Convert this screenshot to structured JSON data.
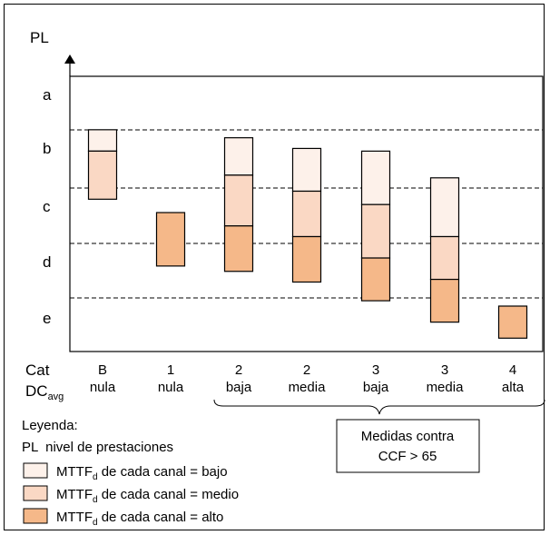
{
  "diagram": {
    "y_axis_label": "PL",
    "pl_levels": [
      "a",
      "b",
      "c",
      "d",
      "e"
    ],
    "cat_label": "Cat",
    "dc_label": "DC",
    "dc_subscript": "avg",
    "categories": [
      {
        "cat": "B",
        "dc": "nula"
      },
      {
        "cat": "1",
        "dc": "nula"
      },
      {
        "cat": "2",
        "dc": "baja"
      },
      {
        "cat": "2",
        "dc": "media"
      },
      {
        "cat": "3",
        "dc": "baja"
      },
      {
        "cat": "3",
        "dc": "media"
      },
      {
        "cat": "4",
        "dc": "alta"
      }
    ],
    "mttf_colors": {
      "bajo": "#fdf1ea",
      "medio": "#fad8c4",
      "alto": "#f5b889"
    },
    "bars": [
      {
        "category": "B nula",
        "mttf": "bajo",
        "from": 0.7,
        "to": 1.1
      },
      {
        "category": "B nula",
        "mttf": "medio",
        "from": 1.1,
        "to": 2.0
      },
      {
        "category": "1 nula",
        "mttf": "alto",
        "from": 2.25,
        "to": 3.25
      },
      {
        "category": "2 baja",
        "mttf": "bajo",
        "from": 0.85,
        "to": 1.55
      },
      {
        "category": "2 baja",
        "mttf": "medio",
        "from": 1.55,
        "to": 2.5
      },
      {
        "category": "2 baja",
        "mttf": "alto",
        "from": 2.5,
        "to": 3.35
      },
      {
        "category": "2 media",
        "mttf": "bajo",
        "from": 1.05,
        "to": 1.85
      },
      {
        "category": "2 media",
        "mttf": "medio",
        "from": 1.85,
        "to": 2.7
      },
      {
        "category": "2 media",
        "mttf": "alto",
        "from": 2.7,
        "to": 3.55
      },
      {
        "category": "3 baja",
        "mttf": "bajo",
        "from": 1.1,
        "to": 2.1
      },
      {
        "category": "3 baja",
        "mttf": "medio",
        "from": 2.1,
        "to": 3.1
      },
      {
        "category": "3 baja",
        "mttf": "alto",
        "from": 3.1,
        "to": 3.9
      },
      {
        "category": "3 media",
        "mttf": "bajo",
        "from": 1.6,
        "to": 2.7
      },
      {
        "category": "3 media",
        "mttf": "medio",
        "from": 2.7,
        "to": 3.5
      },
      {
        "category": "3 media",
        "mttf": "alto",
        "from": 3.5,
        "to": 4.3
      },
      {
        "category": "4 alta",
        "mttf": "alto",
        "from": 4.0,
        "to": 4.6
      }
    ],
    "ccf_box": {
      "line1": "Medidas contra",
      "line2": "CCF > 65"
    },
    "legend": {
      "title": "Leyenda:",
      "pl_line": "PL  nivel de prestaciones",
      "items": [
        {
          "key": "bajo",
          "main": "MTTF",
          "sub": "d",
          "rest": " de cada canal = bajo"
        },
        {
          "key": "medio",
          "main": "MTTF",
          "sub": "d",
          "rest": " de cada canal = medio"
        },
        {
          "key": "alto",
          "main": "MTTF",
          "sub": "d",
          "rest": " de cada canal = alto"
        }
      ]
    }
  }
}
